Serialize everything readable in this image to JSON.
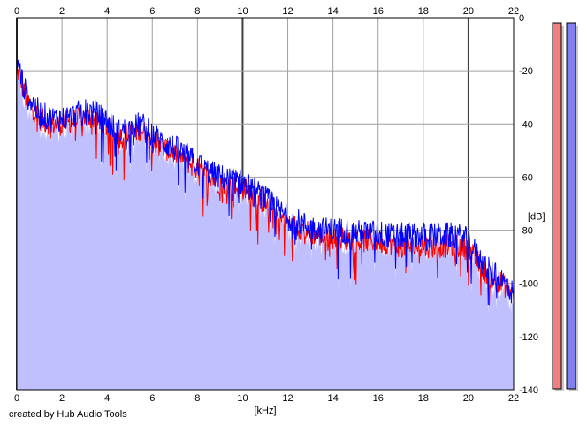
{
  "credit": "created by Hub Audio Tools",
  "chart_data": {
    "type": "line",
    "title": "",
    "xlabel": "[kHz]",
    "ylabel": "[dB]",
    "xlim": [
      0,
      22
    ],
    "ylim": [
      -140,
      0
    ],
    "x_ticks": [
      0,
      2,
      4,
      6,
      8,
      10,
      12,
      14,
      16,
      18,
      20,
      22
    ],
    "y_ticks": [
      0,
      -20,
      -40,
      -60,
      -80,
      -100,
      -120,
      -140
    ],
    "grid": true,
    "legend": "none",
    "fill_color": "#c0c0ff",
    "series": [
      {
        "color": "#ff0000",
        "x": [
          0,
          0.1,
          0.2,
          0.3,
          0.5,
          0.7,
          1,
          1.5,
          2,
          2.5,
          3,
          3.5,
          4,
          4.5,
          5,
          5.5,
          6,
          6.5,
          7,
          7.5,
          8,
          8.5,
          9,
          9.5,
          10,
          10.5,
          11,
          11.5,
          12,
          12.5,
          13,
          13.5,
          14,
          14.5,
          15,
          15.5,
          16,
          16.5,
          17,
          17.5,
          18,
          18.5,
          19,
          19.5,
          20,
          20.5,
          21,
          21.5,
          22
        ],
        "y": [
          -22,
          -20,
          -24,
          -28,
          -32,
          -34,
          -38,
          -40,
          -40,
          -39,
          -37,
          -38,
          -41,
          -45,
          -44,
          -42,
          -46,
          -49,
          -51,
          -54,
          -57,
          -60,
          -62,
          -63,
          -64,
          -67,
          -70,
          -74,
          -77,
          -79,
          -81,
          -82,
          -83,
          -83,
          -84,
          -84,
          -84,
          -85,
          -86,
          -86,
          -86,
          -86,
          -86,
          -86,
          -87,
          -93,
          -98,
          -100,
          -104
        ]
      },
      {
        "color": "#0000ff",
        "x": [
          0,
          0.1,
          0.2,
          0.3,
          0.5,
          0.7,
          1,
          1.5,
          2,
          2.5,
          3,
          3.5,
          4,
          4.5,
          5,
          5.5,
          6,
          6.5,
          7,
          7.5,
          8,
          8.5,
          9,
          9.5,
          10,
          10.5,
          11,
          11.5,
          12,
          12.5,
          13,
          13.5,
          14,
          14.5,
          15,
          15.5,
          16,
          16.5,
          17,
          17.5,
          18,
          18.5,
          19,
          19.5,
          20,
          20.5,
          21,
          21.5,
          22
        ],
        "y": [
          -20,
          -18,
          -22,
          -26,
          -30,
          -32,
          -36,
          -38,
          -38,
          -37,
          -35,
          -36,
          -39,
          -43,
          -42,
          -40,
          -44,
          -47,
          -49,
          -52,
          -55,
          -58,
          -60,
          -61,
          -62,
          -65,
          -68,
          -72,
          -75,
          -77,
          -79,
          -80,
          -80,
          -80,
          -81,
          -81,
          -81,
          -82,
          -82,
          -82,
          -82,
          -82,
          -82,
          -82,
          -84,
          -91,
          -96,
          -99,
          -104
        ]
      }
    ],
    "level_meters": [
      {
        "color": "#f08080",
        "level": 1.0
      },
      {
        "color": "#8080f0",
        "level": 1.0
      }
    ]
  }
}
